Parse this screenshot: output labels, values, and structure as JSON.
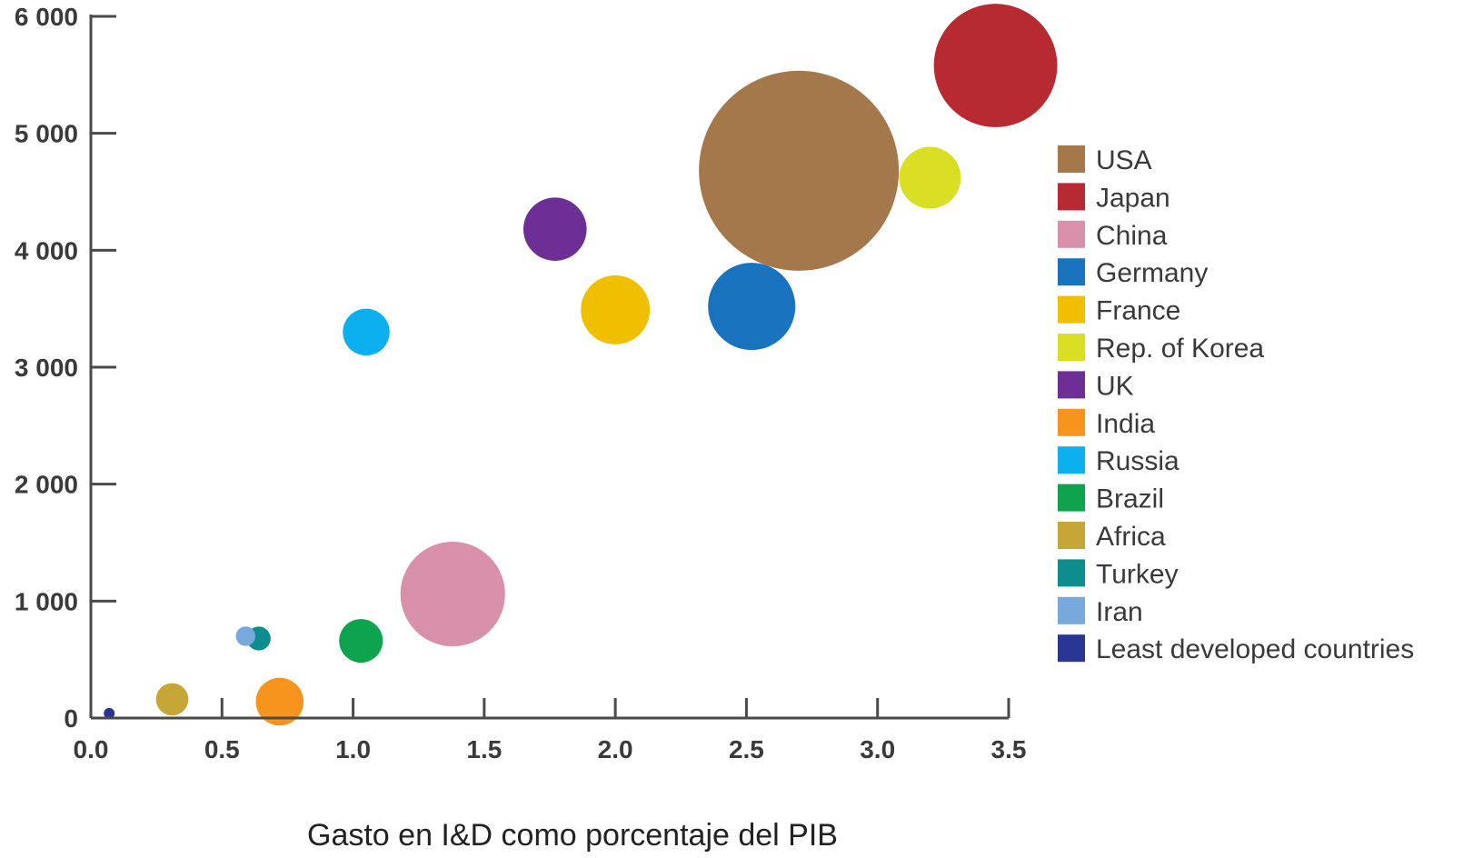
{
  "chart_data": {
    "type": "bubble",
    "title": "",
    "xlabel": "Gasto en I&D como porcentaje del PIB",
    "ylabel": "",
    "xlim": [
      0,
      3.5
    ],
    "ylim": [
      0,
      6000
    ],
    "x_ticks": [
      {
        "value": 0.0,
        "label": "0.0"
      },
      {
        "value": 0.5,
        "label": "0.5"
      },
      {
        "value": 1.0,
        "label": "1.0"
      },
      {
        "value": 1.5,
        "label": "1.5"
      },
      {
        "value": 2.0,
        "label": "2.0"
      },
      {
        "value": 2.5,
        "label": "2.5"
      },
      {
        "value": 3.0,
        "label": "3.0"
      },
      {
        "value": 3.5,
        "label": "3.5"
      }
    ],
    "y_ticks": [
      {
        "value": 0,
        "label": "0"
      },
      {
        "value": 1000,
        "label": "1 000"
      },
      {
        "value": 2000,
        "label": "2 000"
      },
      {
        "value": 3000,
        "label": "3 000"
      },
      {
        "value": 4000,
        "label": "4 000"
      },
      {
        "value": 5000,
        "label": "5 000"
      },
      {
        "value": 6000,
        "label": "6 000"
      }
    ],
    "grid": false,
    "legend_position": "right",
    "series": [
      {
        "name": "USA",
        "x": 2.7,
        "y": 4680,
        "size": 420,
        "color": "#a5784c"
      },
      {
        "name": "Japan",
        "x": 3.45,
        "y": 5580,
        "size": 160,
        "color": "#b72a32"
      },
      {
        "name": "China",
        "x": 1.38,
        "y": 1060,
        "size": 115,
        "color": "#d991ab"
      },
      {
        "name": "Germany",
        "x": 2.52,
        "y": 3520,
        "size": 80,
        "color": "#1a73bf"
      },
      {
        "name": "France",
        "x": 2.0,
        "y": 3490,
        "size": 50,
        "color": "#f0c000"
      },
      {
        "name": "Rep. of Korea",
        "x": 3.2,
        "y": 4620,
        "size": 40,
        "color": "#d9df23"
      },
      {
        "name": "UK",
        "x": 1.77,
        "y": 4180,
        "size": 42,
        "color": "#6d2e96"
      },
      {
        "name": "India",
        "x": 0.72,
        "y": 140,
        "size": 24,
        "color": "#f7941d"
      },
      {
        "name": "Russia",
        "x": 1.05,
        "y": 3300,
        "size": 23,
        "color": "#0db0ef"
      },
      {
        "name": "Brazil",
        "x": 1.03,
        "y": 660,
        "size": 20,
        "color": "#0ea44d"
      },
      {
        "name": "Africa",
        "x": 0.31,
        "y": 160,
        "size": 11,
        "color": "#c6a636"
      },
      {
        "name": "Turkey",
        "x": 0.64,
        "y": 680,
        "size": 6,
        "color": "#0e8d8f"
      },
      {
        "name": "Iran",
        "x": 0.59,
        "y": 700,
        "size": 4,
        "color": "#78a9dc"
      },
      {
        "name": "Least developed countries",
        "x": 0.07,
        "y": 40,
        "size": 0.2,
        "color": "#283593"
      }
    ]
  }
}
